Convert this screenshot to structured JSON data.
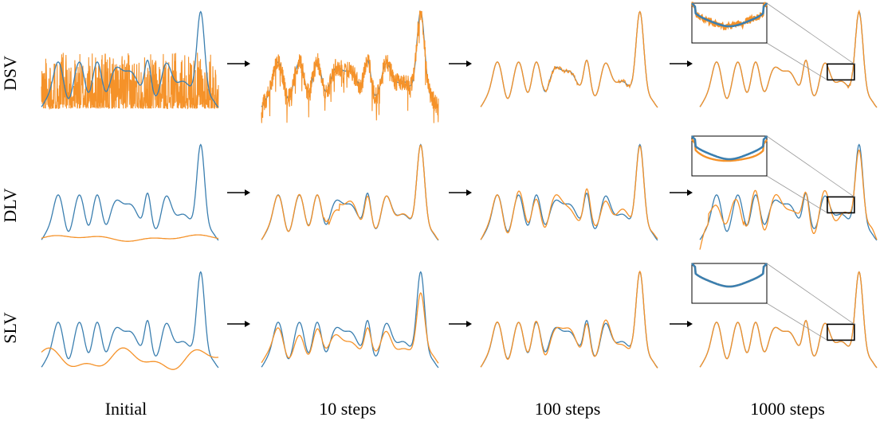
{
  "chart_data": {
    "type": "line",
    "rows": [
      "DSV",
      "DLV",
      "SLV"
    ],
    "columns": [
      "Initial",
      "10 steps",
      "100 steps",
      "1000 steps"
    ],
    "colors": {
      "target": "#3b7fb0",
      "estimate": "#f59229"
    },
    "zoom_inset_column": "1000 steps"
  }
}
